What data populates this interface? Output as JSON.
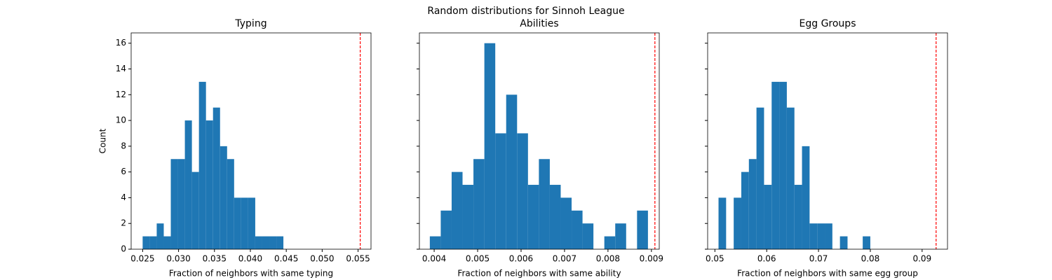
{
  "suptitle": "Random distributions for Sinnoh League",
  "chart_data": [
    {
      "type": "histogram",
      "title": "Typing",
      "xlabel": "Fraction of neighbors with same typing",
      "ylabel": "Count",
      "color": "#1f77b4",
      "bins": [
        0.025,
        0.02598,
        0.02696,
        0.02794,
        0.02892,
        0.0299,
        0.03088,
        0.03186,
        0.03284,
        0.03382,
        0.0348,
        0.03578,
        0.03676,
        0.03774,
        0.03872,
        0.0397,
        0.04068,
        0.04166,
        0.04264,
        0.04362,
        0.0446
      ],
      "values": [
        1,
        1,
        2,
        1,
        7,
        7,
        10,
        6,
        13,
        10,
        11,
        8,
        7,
        4,
        4,
        4,
        1,
        1,
        1,
        1
      ],
      "reference_line": {
        "value": 0.0553,
        "color": "#ff0000"
      },
      "xlim": [
        0.0234,
        0.0568
      ],
      "xticks": [
        0.025,
        {
          "value": 0.03,
          "label": "0.030"
        },
        0.035,
        {
          "value": 0.04,
          "label": "0.040"
        },
        0.045,
        {
          "value": 0.05,
          "label": "0.050"
        },
        0.055
      ],
      "ylim": [
        0,
        16.8
      ],
      "yticks": [
        0,
        2,
        4,
        6,
        8,
        10,
        12,
        14,
        16
      ],
      "show_ytick_labels": true
    },
    {
      "type": "histogram",
      "title": "Abilities",
      "xlabel": "Fraction of neighbors with same ability",
      "color": "#1f77b4",
      "bins": [
        0.0039,
        0.004151,
        0.004402,
        0.004653,
        0.004904,
        0.005155,
        0.005406,
        0.005657,
        0.005908,
        0.006159,
        0.00641,
        0.006661,
        0.006912,
        0.007163,
        0.007414,
        0.007665,
        0.007916,
        0.008167,
        0.008418,
        0.008669,
        0.00892
      ],
      "values": [
        1,
        3,
        6,
        5,
        7,
        16,
        9,
        12,
        9,
        5,
        7,
        5,
        4,
        3,
        2,
        0,
        1,
        2,
        0,
        3
      ],
      "reference_line": {
        "value": 0.00908,
        "color": "#ff0000"
      },
      "xlim": [
        0.00366,
        0.00918
      ],
      "xticks": [
        0.004,
        0.005,
        0.006,
        0.007,
        0.008,
        0.009
      ],
      "ylim": [
        0,
        16.8
      ],
      "yticks": [
        0,
        2,
        4,
        6,
        8,
        10,
        12,
        14,
        16
      ],
      "show_ytick_labels": false
    },
    {
      "type": "histogram",
      "title": "Egg Groups",
      "xlabel": "Fraction of neighbors with same egg group",
      "color": "#1f77b4",
      "bins": [
        0.0507,
        0.052165,
        0.05363,
        0.055095,
        0.05656,
        0.058025,
        0.05949,
        0.060955,
        0.06242,
        0.063885,
        0.06535,
        0.066815,
        0.06828,
        0.069745,
        0.07121,
        0.072675,
        0.07414,
        0.075605,
        0.07707,
        0.078535,
        0.08
      ],
      "values": [
        4,
        0,
        4,
        6,
        7,
        11,
        5,
        13,
        13,
        11,
        5,
        8,
        2,
        2,
        2,
        0,
        1,
        0,
        0,
        1
      ],
      "reference_line": {
        "value": 0.0927,
        "color": "#ff0000"
      },
      "xlim": [
        0.0486,
        0.0949
      ],
      "xticks": [
        0.05,
        0.06,
        0.07,
        0.08,
        0.09
      ],
      "ylim": [
        0,
        16.8
      ],
      "yticks": [
        0,
        2,
        4,
        6,
        8,
        10,
        12,
        14,
        16
      ],
      "show_ytick_labels": false
    }
  ]
}
